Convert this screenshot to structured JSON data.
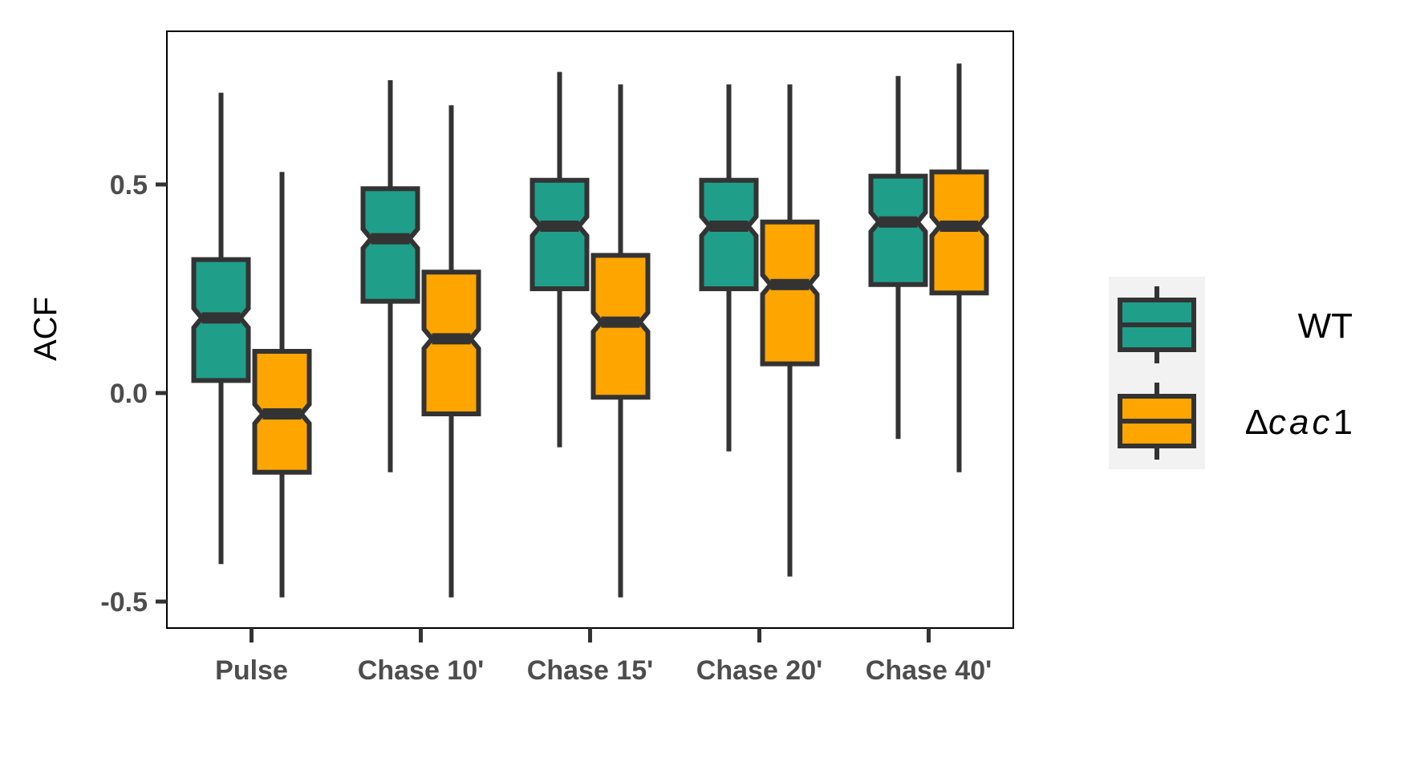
{
  "chart_data": {
    "type": "boxplot",
    "notched": true,
    "title": "",
    "xlabel": "",
    "ylabel": "ACF",
    "ylim": [
      -0.55,
      0.88
    ],
    "yticks": [
      -0.5,
      0.0,
      0.5
    ],
    "ytick_labels": [
      "-0.5",
      "0.0",
      "0.5"
    ],
    "categories": [
      "Pulse",
      "Chase 10'",
      "Chase 15'",
      "Chase 20'",
      "Chase 40'"
    ],
    "grid": false,
    "legend_position": "right",
    "series": [
      {
        "name": "WT",
        "color": "#1f9e89",
        "boxes": [
          {
            "whisker_low": -0.41,
            "q1": 0.03,
            "median": 0.18,
            "q3": 0.32,
            "whisker_high": 0.72
          },
          {
            "whisker_low": -0.19,
            "q1": 0.22,
            "median": 0.37,
            "q3": 0.49,
            "whisker_high": 0.75
          },
          {
            "whisker_low": -0.13,
            "q1": 0.25,
            "median": 0.4,
            "q3": 0.51,
            "whisker_high": 0.77
          },
          {
            "whisker_low": -0.14,
            "q1": 0.25,
            "median": 0.4,
            "q3": 0.51,
            "whisker_high": 0.74
          },
          {
            "whisker_low": -0.11,
            "q1": 0.26,
            "median": 0.41,
            "q3": 0.52,
            "whisker_high": 0.76
          }
        ]
      },
      {
        "name": "Δcac1",
        "name_parts": {
          "prefix": "Δ",
          "italic": "cac",
          "suffix": "1"
        },
        "color": "#ffa500",
        "boxes": [
          {
            "whisker_low": -0.49,
            "q1": -0.19,
            "median": -0.05,
            "q3": 0.1,
            "whisker_high": 0.53
          },
          {
            "whisker_low": -0.49,
            "q1": -0.05,
            "median": 0.13,
            "q3": 0.29,
            "whisker_high": 0.69
          },
          {
            "whisker_low": -0.49,
            "q1": -0.01,
            "median": 0.17,
            "q3": 0.33,
            "whisker_high": 0.74
          },
          {
            "whisker_low": -0.44,
            "q1": 0.07,
            "median": 0.26,
            "q3": 0.41,
            "whisker_high": 0.74
          },
          {
            "whisker_low": -0.19,
            "q1": 0.24,
            "median": 0.4,
            "q3": 0.53,
            "whisker_high": 0.79
          }
        ]
      }
    ]
  },
  "colors": {
    "outline": "#333333",
    "tick_text": "#4d4d4d",
    "legend_key_bg": "#f2f2f2"
  }
}
